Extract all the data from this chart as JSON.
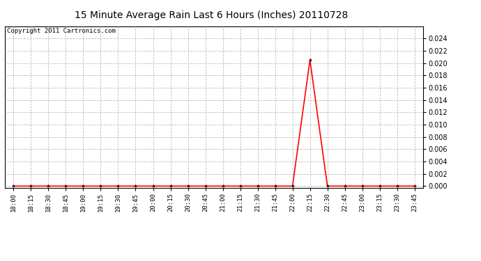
{
  "title": "15 Minute Average Rain Last 6 Hours (Inches) 20110728",
  "copyright_text": "Copyright 2011 Cartronics.com",
  "line_color": "#ff0000",
  "background_color": "#ffffff",
  "grid_color": "#bbbbbb",
  "title_fontsize": 10,
  "copyright_fontsize": 6.5,
  "x_labels": [
    "18:00",
    "18:15",
    "18:30",
    "18:45",
    "19:00",
    "19:15",
    "19:30",
    "19:45",
    "20:00",
    "20:15",
    "20:30",
    "20:45",
    "21:00",
    "21:15",
    "21:30",
    "21:45",
    "22:00",
    "22:15",
    "22:30",
    "22:45",
    "23:00",
    "23:15",
    "23:30",
    "23:45"
  ],
  "values": [
    0.0,
    0.0,
    0.0,
    0.0,
    0.0,
    0.0,
    0.0,
    0.0,
    0.0,
    0.0,
    0.0,
    0.0,
    0.0,
    0.0,
    0.0,
    0.0,
    0.0,
    0.0205,
    0.0,
    0.0,
    0.0,
    0.0,
    0.0,
    0.0
  ],
  "ylim": [
    -0.0003,
    0.026
  ],
  "yticks": [
    0.0,
    0.002,
    0.004,
    0.006,
    0.008,
    0.01,
    0.012,
    0.014,
    0.016,
    0.018,
    0.02,
    0.022,
    0.024
  ],
  "marker": "*",
  "marker_size": 3,
  "linewidth": 1.2
}
